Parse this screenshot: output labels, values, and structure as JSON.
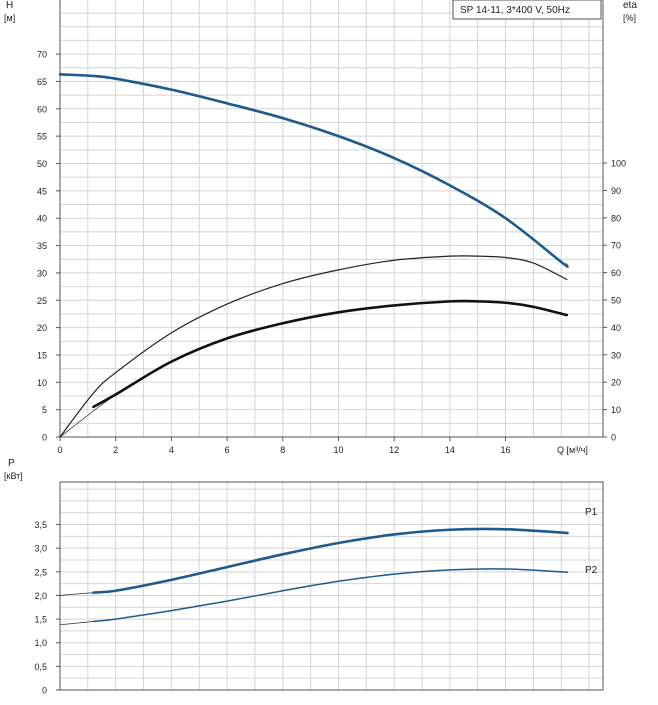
{
  "chart_data": [
    {
      "type": "line",
      "legend_box": "SP 14-11, 3*400 V, 50Hz",
      "y_left": {
        "label_line1": "H",
        "label_line2": "[м]",
        "ylim": [
          0,
          75
        ],
        "ticks": [
          "0",
          "5",
          "10",
          "15",
          "20",
          "25",
          "30",
          "35",
          "40",
          "45",
          "50",
          "55",
          "60",
          "65",
          "70"
        ]
      },
      "y_right": {
        "label_line1": "eta",
        "label_line2": "[%]",
        "ticks": [
          "0",
          "10",
          "20",
          "30",
          "40",
          "50",
          "60",
          "70",
          "80",
          "90",
          "100"
        ]
      },
      "x": {
        "label": "Q [м³/ч]",
        "xlim": [
          0,
          19.5
        ],
        "ticks": [
          "0",
          "2",
          "4",
          "6",
          "8",
          "10",
          "12",
          "14",
          "16"
        ]
      },
      "grid": true,
      "series": [
        {
          "id": "head",
          "axis": "left",
          "points": [
            [
              0,
              66.3
            ],
            [
              1.2,
              66
            ],
            [
              2,
              65.5
            ],
            [
              4,
              63.5
            ],
            [
              6,
              61
            ],
            [
              8,
              58.3
            ],
            [
              10,
              55
            ],
            [
              12,
              51
            ],
            [
              14,
              46
            ],
            [
              16,
              40
            ],
            [
              18,
              32
            ],
            [
              18.2,
              31.3
            ]
          ]
        },
        {
          "id": "head_thin",
          "axis": "left",
          "points": [
            [
              0,
              66.3
            ],
            [
              1.2,
              66
            ],
            [
              2,
              65.5
            ],
            [
              4,
              63.5
            ],
            [
              6,
              61
            ],
            [
              8,
              58.3
            ],
            [
              10,
              55
            ],
            [
              12,
              51
            ],
            [
              14,
              46
            ],
            [
              16,
              40
            ],
            [
              18,
              32
            ],
            [
              18.2,
              31.7
            ]
          ]
        },
        {
          "id": "eta_pump",
          "axis": "right",
          "points": [
            [
              0,
              0
            ],
            [
              1.2,
              16
            ],
            [
              2,
              23.5
            ],
            [
              4,
              38
            ],
            [
              6,
              48.5
            ],
            [
              8,
              56
            ],
            [
              10,
              61
            ],
            [
              12,
              64.5
            ],
            [
              14,
              66
            ],
            [
              15,
              66
            ],
            [
              16,
              65.5
            ],
            [
              17,
              63.5
            ],
            [
              18.2,
              57.5
            ]
          ]
        },
        {
          "id": "eta_total",
          "axis": "right",
          "points": [
            [
              1.2,
              11
            ],
            [
              2,
              15.5
            ],
            [
              4,
              27.5
            ],
            [
              6,
              36
            ],
            [
              8,
              41.5
            ],
            [
              10,
              45.5
            ],
            [
              12,
              48
            ],
            [
              14,
              49.5
            ],
            [
              15,
              49.5
            ],
            [
              16,
              49
            ],
            [
              17,
              47.5
            ],
            [
              18.2,
              44.5
            ]
          ]
        },
        {
          "id": "eta_total_thin",
          "axis": "right",
          "points": [
            [
              0,
              0
            ],
            [
              1.2,
              9.5
            ],
            [
              2,
              15.5
            ]
          ]
        }
      ]
    },
    {
      "type": "line",
      "y": {
        "label_line1": "P",
        "label_line2": "[кВт]",
        "ylim": [
          0,
          4.4
        ],
        "ticks": [
          "0",
          "0,5",
          "1,0",
          "1,5",
          "2,0",
          "2,5",
          "3,0",
          "3,5"
        ]
      },
      "x": {
        "xlim": [
          0,
          19.5
        ]
      },
      "grid": true,
      "series": [
        {
          "name": "P1",
          "points": [
            [
              0,
              2
            ],
            [
              1.2,
              2.06
            ],
            [
              2,
              2.1
            ],
            [
              4,
              2.33
            ],
            [
              6,
              2.6
            ],
            [
              8,
              2.87
            ],
            [
              10,
              3.11
            ],
            [
              12,
              3.29
            ],
            [
              14,
              3.39
            ],
            [
              16,
              3.4
            ],
            [
              18,
              3.33
            ],
            [
              18.2,
              3.32
            ]
          ]
        },
        {
          "name": "P2",
          "points": [
            [
              0,
              1.38
            ],
            [
              1.2,
              1.45
            ],
            [
              2,
              1.5
            ],
            [
              4,
              1.68
            ],
            [
              6,
              1.88
            ],
            [
              8,
              2.1
            ],
            [
              10,
              2.3
            ],
            [
              12,
              2.45
            ],
            [
              14,
              2.54
            ],
            [
              16,
              2.56
            ],
            [
              18,
              2.5
            ],
            [
              18.2,
              2.49
            ]
          ]
        }
      ]
    }
  ],
  "colors": {
    "grid": "#d4d4d4",
    "frame": "#555555",
    "blue": "#1d5a8e",
    "black": "#111111",
    "label_blue": "#1d5a8e"
  }
}
